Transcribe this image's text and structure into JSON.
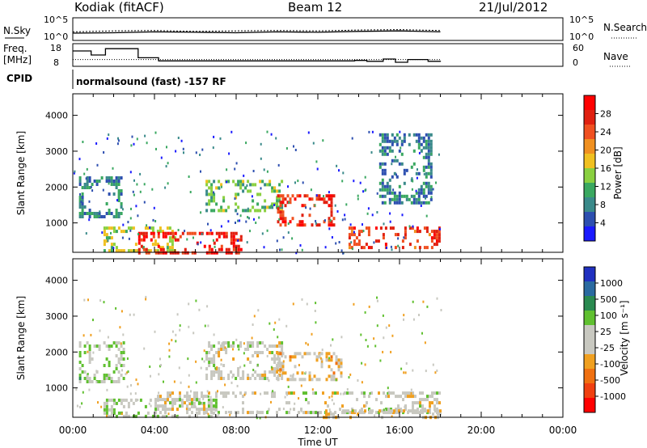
{
  "header": {
    "station": "Kodiak (fitACF)",
    "beam": "Beam 12",
    "date": "21/Jul/2012"
  },
  "noise_panel": {
    "left_label": "N.Sky",
    "right_label": "N.Search",
    "left_ticks": [
      "10^5",
      "10^0"
    ],
    "right_ticks": [
      "10^5",
      "10^0"
    ]
  },
  "freq_panel": {
    "left_label_line1": "Freq.",
    "left_label_line2": "[MHz]",
    "right_label": "Nave",
    "left_ticks": [
      "18",
      "8"
    ],
    "right_ticks": [
      "60",
      "0"
    ]
  },
  "cpid_panel": {
    "label": "CPID",
    "text": "normalsound (fast) -157 RF"
  },
  "x_axis": {
    "label": "Time UT",
    "tick_labels": [
      "00:00",
      "04:00",
      "08:00",
      "12:00",
      "16:00",
      "20:00",
      "00:00"
    ]
  },
  "colors": {
    "power_scale": [
      "#1a1aff",
      "#2d4fb0",
      "#3a8a8a",
      "#3aa860",
      "#8ad040",
      "#f0c020",
      "#f09020",
      "#f05020",
      "#e02010",
      "#ff0000"
    ],
    "velocity_scale": [
      "#2030c0",
      "#2a6aa0",
      "#2a8a50",
      "#60c030",
      "#c8c8c0",
      "#c8c8c0",
      "#f0a020",
      "#f07010",
      "#f04010",
      "#ff0000"
    ]
  },
  "chart_data": [
    {
      "type": "line",
      "title": "Kodiak (fitACF)",
      "series": [
        {
          "name": "N.Sky",
          "x_hours": [
            0,
            2,
            4,
            6,
            8,
            10,
            12,
            14,
            16,
            18
          ],
          "values_log10": [
            1.6,
            1.7,
            1.9,
            1.8,
            1.7,
            1.9,
            1.8,
            2.0,
            2.1,
            1.9
          ]
        },
        {
          "name": "N.Search",
          "x_hours": [
            0,
            2,
            4,
            6,
            8,
            10,
            12,
            14,
            16,
            18
          ],
          "values_log10": [
            1.9,
            2.1,
            2.2,
            2.0,
            2.1,
            2.2,
            2.1,
            2.3,
            2.4,
            2.2
          ]
        }
      ],
      "ylim": [
        0,
        5
      ],
      "xlim": [
        0,
        24
      ]
    },
    {
      "type": "line",
      "series": [
        {
          "name": "Freq.",
          "x_hours": [
            0,
            0.9,
            1.6,
            3.2,
            4.2,
            13.8,
            14.4,
            15.2,
            15.8,
            16.4,
            17.4,
            18.0
          ],
          "values": [
            14.8,
            13.0,
            15.8,
            11.8,
            10.4,
            10.6,
            10.2,
            11.2,
            9.8,
            11.0,
            10.2,
            10.0
          ]
        },
        {
          "name": "Nave",
          "x_hours": [
            0,
            18
          ],
          "values": [
            18,
            18
          ]
        }
      ],
      "ylim_freq": [
        8,
        18
      ],
      "ylim_nave": [
        0,
        60
      ],
      "xlim": [
        0,
        24
      ]
    },
    {
      "type": "heatmap",
      "title": "Beam 12",
      "xlabel": "Time UT",
      "ylabel": "Slant Range [km]",
      "x_ticks": [
        "00:00",
        "04:00",
        "08:00",
        "12:00",
        "16:00",
        "20:00",
        "00:00"
      ],
      "xlim": [
        0,
        24
      ],
      "ylim": [
        180,
        4600
      ],
      "y_ticks": [
        1000,
        2000,
        3000,
        4000
      ],
      "colorbar_label": "Power [dB]",
      "colorbar_ticks": [
        "4",
        "8",
        "12",
        "16",
        "20",
        "24",
        "28"
      ],
      "colorbar_range": [
        0,
        30
      ],
      "blobs": [
        {
          "t_start": 1.5,
          "t_end": 5.0,
          "r_start": 200,
          "r_end": 900,
          "value": 14
        },
        {
          "t_start": 3.2,
          "t_end": 8.2,
          "r_start": 200,
          "r_end": 750,
          "value": 26
        },
        {
          "t_start": 6.5,
          "t_end": 10.2,
          "r_start": 1300,
          "r_end": 2200,
          "value": 12
        },
        {
          "t_start": 10.0,
          "t_end": 12.8,
          "r_start": 900,
          "r_end": 1800,
          "value": 25
        },
        {
          "t_start": 13.5,
          "t_end": 18.0,
          "r_start": 300,
          "r_end": 900,
          "value": 24
        },
        {
          "t_start": 0.3,
          "t_end": 2.4,
          "r_start": 1200,
          "r_end": 2300,
          "value": 8
        },
        {
          "t_start": 15.0,
          "t_end": 17.5,
          "r_start": 1600,
          "r_end": 3500,
          "value": 7
        }
      ]
    },
    {
      "type": "heatmap",
      "xlabel": "Time UT",
      "ylabel": "Slant Range [km]",
      "x_ticks": [
        "00:00",
        "04:00",
        "08:00",
        "12:00",
        "16:00",
        "20:00",
        "00:00"
      ],
      "xlim": [
        0,
        24
      ],
      "ylim": [
        180,
        4600
      ],
      "y_ticks": [
        1000,
        2000,
        3000,
        4000
      ],
      "colorbar_label": "Velocity [m s⁻¹]",
      "colorbar_ticks": [
        "1000",
        "500",
        "100",
        "25",
        "-25",
        "-100",
        "-500",
        "-1000"
      ],
      "colorbar_range": [
        -1200,
        1200
      ],
      "blobs": [
        {
          "t_start": 1.5,
          "t_end": 7.0,
          "r_start": 200,
          "r_end": 700,
          "value": 150
        },
        {
          "t_start": 4.0,
          "t_end": 18.0,
          "r_start": 300,
          "r_end": 900,
          "value": 0
        },
        {
          "t_start": 6.5,
          "t_end": 10.2,
          "r_start": 1300,
          "r_end": 2300,
          "value": 0
        },
        {
          "t_start": 10.0,
          "t_end": 13.2,
          "r_start": 1200,
          "r_end": 2000,
          "value": -250
        },
        {
          "t_start": 0.3,
          "t_end": 2.5,
          "r_start": 1200,
          "r_end": 2300,
          "value": 200
        },
        {
          "t_start": 12.0,
          "t_end": 18.0,
          "r_start": 150,
          "r_end": 400,
          "value": -150
        }
      ]
    }
  ]
}
